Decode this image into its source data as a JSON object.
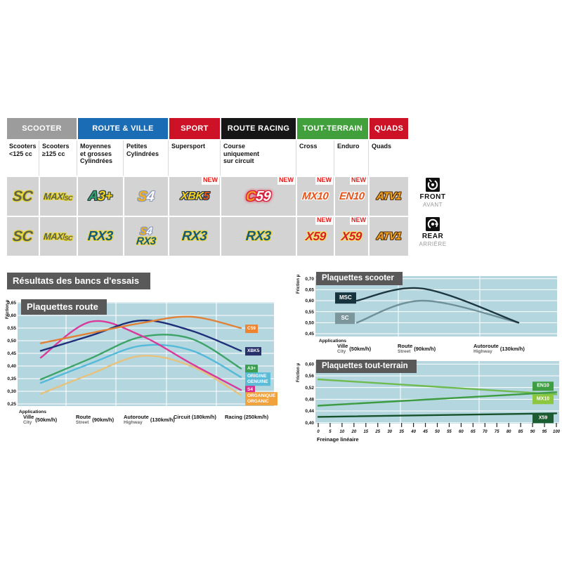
{
  "section_title": "Résultats des bancs d'essais",
  "plot_bg_color": "#b4d6de",
  "banner_color": "#595959",
  "table": {
    "new_label": "NEW",
    "categories": [
      {
        "label": "SCOOTER",
        "color": "#9c9c9c",
        "span": 2
      },
      {
        "label": "ROUTE & VILLE",
        "color": "#1a6cb5",
        "span": 2
      },
      {
        "label": "SPORT",
        "color": "#cd1126",
        "span": 1
      },
      {
        "label": "ROUTE RACING",
        "color": "#161616",
        "span": 1
      },
      {
        "label": "TOUT-TERRAIN",
        "color": "#41a03c",
        "span": 2
      },
      {
        "label": "QUADS",
        "color": "#cd1126",
        "span": 1
      }
    ],
    "subheaders": [
      "Scooters\n<125 cc",
      "Scooters\n≥125 cc",
      "Moyennes\net grosses\nCylindrées",
      "Petites\nCylindrées",
      "Supersport",
      "Course\nuniquement\nsur circuit",
      "Cross",
      "Enduro",
      "Quads"
    ],
    "rows": [
      {
        "side": "front",
        "cells": [
          {
            "products": [
              {
                "variant": "sc",
                "parts": [
                  [
                    "SC",
                    "p1"
                  ]
                ]
              }
            ],
            "new": false
          },
          {
            "products": [
              {
                "variant": "maxisc",
                "parts": [
                  [
                    "MAXI",
                    "p1"
                  ],
                  [
                    "SC",
                    "p2"
                  ]
                ]
              }
            ],
            "new": false
          },
          {
            "products": [
              {
                "variant": "a3",
                "parts": [
                  [
                    "A",
                    "p1"
                  ],
                  [
                    "3+",
                    "p2"
                  ]
                ]
              }
            ],
            "new": false
          },
          {
            "products": [
              {
                "variant": "s4",
                "parts": [
                  [
                    "S",
                    "p1"
                  ],
                  [
                    "4",
                    "p2"
                  ]
                ]
              }
            ],
            "new": false
          },
          {
            "products": [
              {
                "variant": "xbk5",
                "parts": [
                  [
                    "XBK",
                    "p1"
                  ],
                  [
                    "5",
                    "p2"
                  ]
                ]
              }
            ],
            "new": true
          },
          {
            "products": [
              {
                "variant": "c59",
                "parts": [
                  [
                    "C",
                    "p1"
                  ],
                  [
                    "59",
                    "p2"
                  ]
                ]
              }
            ],
            "new": true
          },
          {
            "products": [
              {
                "variant": "mx",
                "parts": [
                  [
                    "MX10",
                    "p1"
                  ]
                ]
              }
            ],
            "new": true
          },
          {
            "products": [
              {
                "variant": "mx",
                "parts": [
                  [
                    "EN10",
                    "p1"
                  ]
                ]
              }
            ],
            "new": true
          },
          {
            "products": [
              {
                "variant": "atv",
                "parts": [
                  [
                    "ATV1",
                    "p1"
                  ]
                ]
              }
            ],
            "new": false
          }
        ]
      },
      {
        "side": "rear",
        "cells": [
          {
            "products": [
              {
                "variant": "sc",
                "parts": [
                  [
                    "SC",
                    "p1"
                  ]
                ]
              }
            ],
            "new": false
          },
          {
            "products": [
              {
                "variant": "maxisc",
                "parts": [
                  [
                    "MAXI",
                    "p1"
                  ],
                  [
                    "SC",
                    "p2"
                  ]
                ]
              }
            ],
            "new": false
          },
          {
            "products": [
              {
                "variant": "rx3",
                "parts": [
                  [
                    "RX3",
                    "p1"
                  ]
                ]
              }
            ],
            "new": false
          },
          {
            "products": [
              {
                "variant": "s4",
                "parts": [
                  [
                    "S",
                    "p1"
                  ],
                  [
                    "4",
                    "p2"
                  ]
                ]
              },
              {
                "variant": "rx3",
                "parts": [
                  [
                    "RX3",
                    "p1"
                  ]
                ]
              }
            ],
            "new": false
          },
          {
            "products": [
              {
                "variant": "rx3",
                "parts": [
                  [
                    "RX3",
                    "p1"
                  ]
                ]
              }
            ],
            "new": false
          },
          {
            "products": [
              {
                "variant": "rx3",
                "parts": [
                  [
                    "RX3",
                    "p1"
                  ]
                ]
              }
            ],
            "new": false
          },
          {
            "products": [
              {
                "variant": "x59",
                "parts": [
                  [
                    "X59",
                    "p1"
                  ]
                ]
              }
            ],
            "new": true
          },
          {
            "products": [
              {
                "variant": "x59",
                "parts": [
                  [
                    "X59",
                    "p1"
                  ]
                ]
              }
            ],
            "new": true
          },
          {
            "products": [
              {
                "variant": "atv",
                "parts": [
                  [
                    "ATV1",
                    "p1"
                  ]
                ]
              }
            ],
            "new": false
          }
        ]
      }
    ]
  },
  "legend": {
    "front": {
      "label": "FRONT",
      "sub": "AVANT"
    },
    "rear": {
      "label": "REAR",
      "sub": "ARRIÈRE"
    }
  },
  "chart_data": [
    {
      "id": "route",
      "type": "line",
      "title": "Plaquettes route",
      "ylabel": "Friction µ",
      "xlabel": "Applications",
      "ylim": [
        0.25,
        0.65
      ],
      "yticks": [
        "0,65",
        "0,60",
        "0,55",
        "0,50",
        "0,45",
        "0,40",
        "0,35",
        "0,30",
        "0,25"
      ],
      "categories": [
        {
          "fr": "Ville",
          "en": "City",
          "speed": "(50km/h)"
        },
        {
          "fr": "Route",
          "en": "Street",
          "speed": "(90km/h)"
        },
        {
          "fr": "Autoroute",
          "en": "Highway",
          "speed": "(130km/h)"
        },
        {
          "fr": "Circuit",
          "en": "",
          "speed": "(180km/h)"
        },
        {
          "fr": "Racing",
          "en": "",
          "speed": "(250km/h)"
        }
      ],
      "series": [
        {
          "name": "C59",
          "color": "#e08137",
          "label_bg": "#ee8330",
          "label_v": 0.548,
          "values": [
            0.49,
            0.53,
            0.57,
            0.595,
            0.55
          ]
        },
        {
          "name": "XBK5",
          "color": "#1e2e78",
          "label_bg": "#27306b",
          "label_v": 0.458,
          "values": [
            0.46,
            0.52,
            0.58,
            0.54,
            0.46
          ]
        },
        {
          "name": "S4",
          "color": "#d8399b",
          "label_bg": "#d62e90",
          "label_v": 0.306,
          "values": [
            0.433,
            0.575,
            0.52,
            0.41,
            0.305
          ]
        },
        {
          "name": "A3+",
          "color": "#3da468",
          "label_bg": "#3b9e53",
          "label_v": 0.388,
          "values": [
            0.347,
            0.43,
            0.515,
            0.508,
            0.39
          ]
        },
        {
          "name": "ORIGINE\nGENUINE",
          "color": "#55b9d9",
          "label_bg": "#5cbcd8",
          "label_v": 0.348,
          "values": [
            0.333,
            0.41,
            0.48,
            0.462,
            0.356
          ]
        },
        {
          "name": "ORGANIQUE\nORGANIC",
          "color": "#e7c17e",
          "label_bg": "#f2a23d",
          "label_v": 0.27,
          "values": [
            0.29,
            0.368,
            0.44,
            0.4,
            0.285
          ]
        }
      ]
    },
    {
      "id": "scooter",
      "type": "line",
      "title": "Plaquettes scooter",
      "ylabel": "Friction µ",
      "xlabel": "Applications",
      "ylim": [
        0.45,
        0.7
      ],
      "yticks": [
        "0,70",
        "0,65",
        "0,60",
        "0,55",
        "0,50",
        "0,45"
      ],
      "categories": [
        {
          "fr": "Ville",
          "en": "City",
          "speed": "(50km/h)"
        },
        {
          "fr": "Route",
          "en": "Street",
          "speed": "(90km/h)"
        },
        {
          "fr": "Autoroute",
          "en": "Highway",
          "speed": "(130km/h)"
        }
      ],
      "series": [
        {
          "name": "MSC",
          "color": "#1d3741",
          "label_bg": "#17333d",
          "label_v": 0.613,
          "values": [
            0.6,
            0.655,
            0.5
          ]
        },
        {
          "name": "SC",
          "color": "#6f9099",
          "label_bg": "#7d969c",
          "label_v": 0.519,
          "values": [
            0.5,
            0.6,
            0.5
          ]
        }
      ]
    },
    {
      "id": "tt",
      "type": "line",
      "title": "Plaquettes tout-terrain",
      "ylabel": "Friction µ",
      "xlabel": "Freinage linéaire",
      "ylim": [
        0.4,
        0.6
      ],
      "yticks": [
        "0,60",
        "0,56",
        "0,52",
        "0,48",
        "0,44",
        "0,40"
      ],
      "xticks": [
        "0",
        "5",
        "10",
        "20",
        "15",
        "25",
        "30",
        "35",
        "40",
        "45",
        "50",
        "55",
        "60",
        "65",
        "70",
        "75",
        "80",
        "85",
        "90",
        "95",
        "100"
      ],
      "series": [
        {
          "name": "EN10",
          "color": "#3d9b41",
          "label_bg": "#3f9e41",
          "label_v": 0.524,
          "values": [
            0.458,
            0.504
          ]
        },
        {
          "name": "MX10",
          "color": "#6fbb52",
          "label_bg": "#8dc63f",
          "label_v": 0.48,
          "values": [
            0.548,
            0.497
          ]
        },
        {
          "name": "X59",
          "color": "#15512a",
          "label_bg": "#1c5e31",
          "label_v": 0.414,
          "values": [
            0.42,
            0.432
          ]
        }
      ]
    }
  ]
}
